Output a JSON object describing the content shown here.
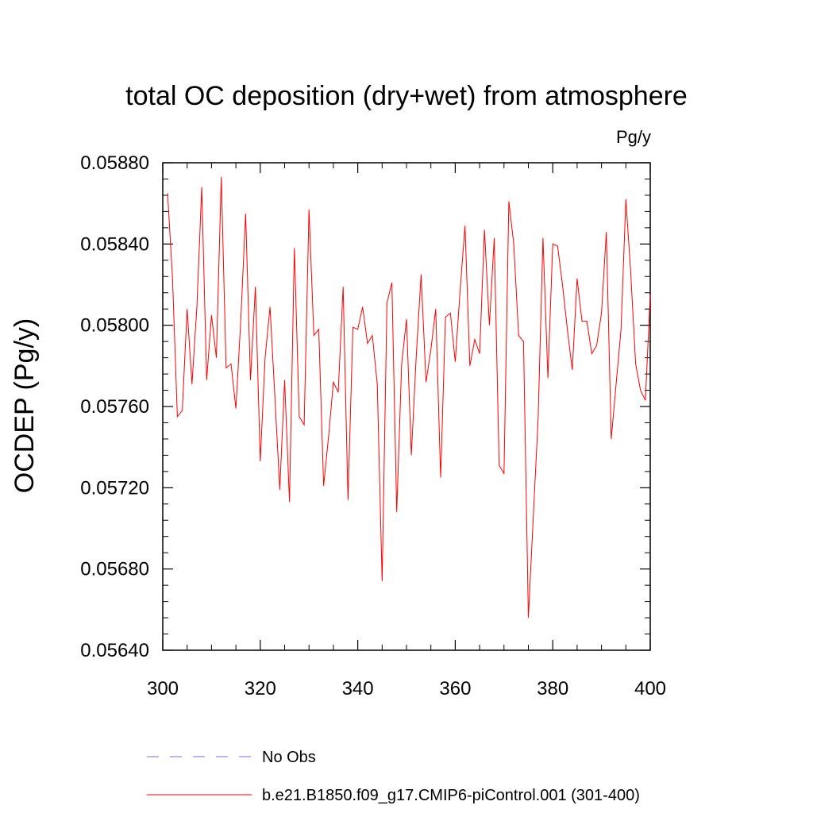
{
  "chart_data": {
    "type": "line",
    "title": "total OC deposition (dry+wet) from atmosphere",
    "units_label": "Pg/y",
    "xlabel": "",
    "ylabel": "OCDEP  (Pg/y)",
    "xlim": [
      300,
      400
    ],
    "ylim": [
      0.0564,
      0.0588
    ],
    "x_ticks": [
      300,
      320,
      340,
      360,
      380,
      400
    ],
    "x_tick_labels": [
      "300",
      "320",
      "340",
      "360",
      "380",
      "400"
    ],
    "y_ticks": [
      0.0564,
      0.0568,
      0.0572,
      0.0576,
      0.058,
      0.0584,
      0.0588
    ],
    "y_tick_labels": [
      "0.05640",
      "0.05680",
      "0.05720",
      "0.05760",
      "0.05800",
      "0.05840",
      "0.05880"
    ],
    "grid": false,
    "legend_position": "bottom",
    "series": [
      {
        "name": "b.e21.B1850.f09_g17.CMIP6-piControl.001 (301-400)",
        "color": "#ff0000",
        "dash": "solid",
        "x": [
          301,
          302,
          303,
          304,
          305,
          306,
          307,
          308,
          309,
          310,
          311,
          312,
          313,
          314,
          315,
          316,
          317,
          318,
          319,
          320,
          321,
          322,
          323,
          324,
          325,
          326,
          327,
          328,
          329,
          330,
          331,
          332,
          333,
          334,
          335,
          336,
          337,
          338,
          339,
          340,
          341,
          342,
          343,
          344,
          345,
          346,
          347,
          348,
          349,
          350,
          351,
          352,
          353,
          354,
          355,
          356,
          357,
          358,
          359,
          360,
          361,
          362,
          363,
          364,
          365,
          366,
          367,
          368,
          369,
          370,
          371,
          372,
          373,
          374,
          375,
          376,
          377,
          378,
          379,
          380,
          381,
          382,
          383,
          384,
          385,
          386,
          387,
          388,
          389,
          390,
          391,
          392,
          393,
          394,
          395,
          396,
          397,
          398,
          399,
          400
        ],
        "values": [
          0.05865,
          0.05823,
          0.05755,
          0.05758,
          0.05808,
          0.05771,
          0.05809,
          0.05868,
          0.05773,
          0.05805,
          0.05784,
          0.05873,
          0.05779,
          0.05781,
          0.05759,
          0.05802,
          0.05855,
          0.05773,
          0.05819,
          0.05733,
          0.05784,
          0.05809,
          0.05765,
          0.05719,
          0.05773,
          0.05713,
          0.05838,
          0.05755,
          0.05751,
          0.05857,
          0.05795,
          0.05798,
          0.05721,
          0.05745,
          0.05772,
          0.05767,
          0.05819,
          0.05714,
          0.05799,
          0.05798,
          0.05809,
          0.05791,
          0.05795,
          0.05771,
          0.05674,
          0.05811,
          0.05821,
          0.05708,
          0.05781,
          0.05803,
          0.05736,
          0.05785,
          0.05825,
          0.05772,
          0.05788,
          0.05808,
          0.05725,
          0.05804,
          0.05806,
          0.05782,
          0.05817,
          0.05849,
          0.0578,
          0.05793,
          0.05786,
          0.05847,
          0.058,
          0.05843,
          0.05731,
          0.05727,
          0.05861,
          0.0584,
          0.05795,
          0.05792,
          0.05656,
          0.05705,
          0.05754,
          0.05843,
          0.05774,
          0.0584,
          0.05839,
          0.0582,
          0.05798,
          0.05778,
          0.05823,
          0.05802,
          0.05802,
          0.05786,
          0.0579,
          0.05806,
          0.05846,
          0.05744,
          0.05771,
          0.05798,
          0.05862,
          0.05826,
          0.05781,
          0.05768,
          0.05763,
          0.05815
        ]
      }
    ],
    "legend": [
      {
        "label": "No Obs",
        "color": "#7b68ee",
        "dash": "dashed"
      },
      {
        "label": "b.e21.B1850.f09_g17.CMIP6-piControl.001 (301-400)",
        "color": "#ff0000",
        "dash": "solid"
      }
    ]
  }
}
